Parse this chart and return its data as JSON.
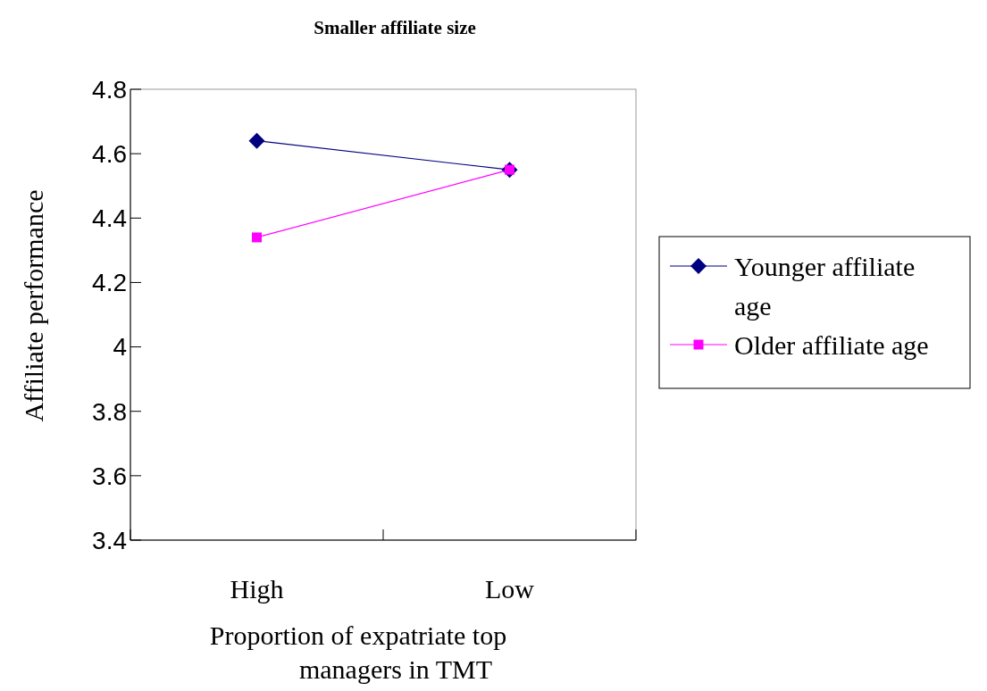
{
  "chart_data": {
    "type": "line",
    "title": "Smaller affiliate size",
    "xlabel": "Proportion of expatriate top managers in TMT",
    "ylabel": "Affiliate performance",
    "categories": [
      "High",
      "Low"
    ],
    "series": [
      {
        "name": "Younger affiliate age",
        "color": "#000080",
        "values": [
          4.64,
          4.55
        ],
        "marker": "diamond"
      },
      {
        "name": "Older affiliate age",
        "color": "#ff00ff",
        "values": [
          4.34,
          4.55
        ],
        "marker": "square"
      }
    ],
    "ylim": [
      3.4,
      4.8
    ],
    "yticks": [
      3.4,
      3.6,
      3.8,
      {
        "value": 4,
        "label": "4"
      },
      4.2,
      4.4,
      4.6,
      4.8
    ],
    "legend": "right",
    "grid": false,
    "line_style": "solid"
  }
}
